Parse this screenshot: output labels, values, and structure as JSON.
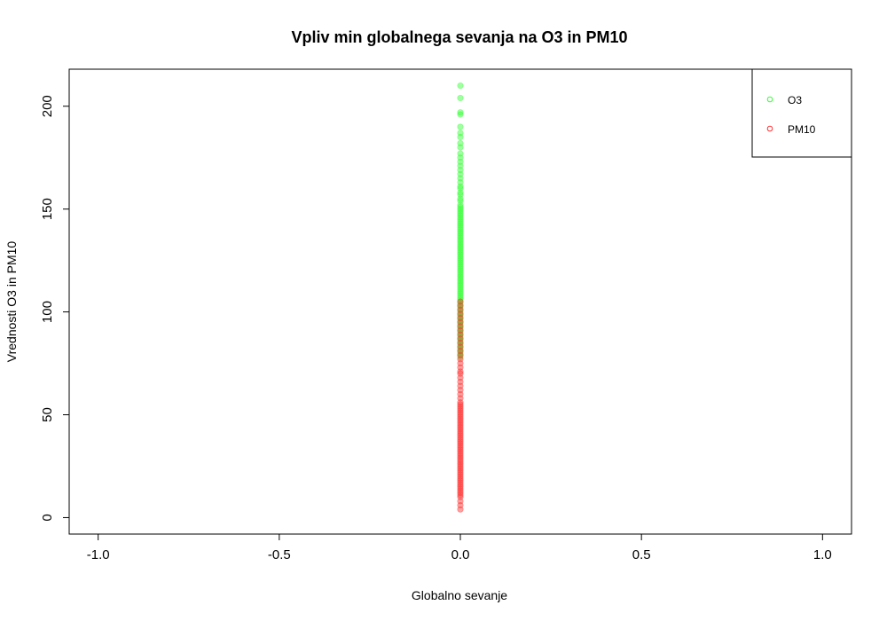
{
  "chart_data": {
    "type": "scatter",
    "title": "Vpliv min globalnega sevanja na O3 in PM10",
    "xlabel": "Globalno sevanje",
    "ylabel": "Vrednosti O3 in PM10",
    "xlim": [
      -1.08,
      1.08
    ],
    "ylim": [
      -8,
      218
    ],
    "x_ticks": [
      -1.0,
      -0.5,
      0.0,
      0.5,
      1.0
    ],
    "x_tick_labels": [
      "-1.0",
      "-0.5",
      "0.0",
      "0.5",
      "1.0"
    ],
    "y_ticks": [
      0,
      50,
      100,
      150,
      200
    ],
    "y_tick_labels": [
      "0",
      "50",
      "100",
      "150",
      "200"
    ],
    "grid": false,
    "legend_position": "top-right",
    "series": [
      {
        "name": "O3",
        "color": "#33ff33",
        "marker": "circle",
        "x": [
          0,
          0,
          0,
          0,
          0,
          0,
          0,
          0,
          0,
          0,
          0,
          0,
          0,
          0,
          0,
          0,
          0,
          0,
          0,
          0,
          0,
          0,
          0,
          0,
          0,
          0,
          0,
          0,
          0,
          0,
          0,
          0,
          0,
          0,
          0,
          0,
          0,
          0,
          0,
          0,
          0,
          0,
          0,
          0,
          0,
          0,
          0,
          0,
          0,
          0,
          0,
          0,
          0,
          0,
          0,
          0,
          0,
          0,
          0,
          0,
          0,
          0,
          0,
          0,
          0,
          0,
          0,
          0,
          0,
          0,
          0,
          0,
          0,
          0,
          0,
          0,
          0,
          0,
          0,
          0,
          0,
          0,
          0,
          0,
          0,
          0,
          0,
          0,
          0,
          0,
          0,
          0,
          0,
          0,
          0,
          0,
          0,
          0
        ],
        "y": [
          210,
          204,
          197,
          196,
          190,
          187,
          185,
          182,
          180,
          177,
          175,
          173,
          171,
          169,
          167,
          165,
          163,
          161,
          160,
          158,
          157,
          155,
          154,
          152,
          151,
          150,
          149,
          148,
          147,
          146,
          145,
          144,
          143,
          142,
          141,
          140,
          139,
          138,
          137,
          136,
          135,
          134,
          133,
          132,
          131,
          130,
          129,
          128,
          127,
          126,
          125,
          124,
          123,
          122,
          121,
          120,
          119,
          118,
          117,
          116,
          115,
          114,
          113,
          112,
          111,
          110,
          109,
          108,
          107,
          106,
          105,
          104,
          103,
          102,
          101,
          100,
          99,
          98,
          97,
          96,
          95,
          94,
          93,
          92,
          91,
          90,
          89,
          88,
          87,
          86,
          85,
          84,
          83,
          82,
          81,
          80,
          79,
          78
        ]
      },
      {
        "name": "PM10",
        "color": "#ff3333",
        "marker": "circle",
        "x": [
          0,
          0,
          0,
          0,
          0,
          0,
          0,
          0,
          0,
          0,
          0,
          0,
          0,
          0,
          0,
          0,
          0,
          0,
          0,
          0,
          0,
          0,
          0,
          0,
          0,
          0,
          0,
          0,
          0,
          0,
          0,
          0,
          0,
          0,
          0,
          0,
          0,
          0,
          0,
          0,
          0,
          0,
          0,
          0,
          0,
          0,
          0,
          0,
          0,
          0,
          0,
          0,
          0,
          0,
          0,
          0,
          0,
          0,
          0,
          0,
          0,
          0,
          0,
          0,
          0,
          0,
          0,
          0,
          0,
          0,
          0,
          0,
          0,
          0,
          0
        ],
        "y": [
          105,
          103,
          101,
          99,
          97,
          95,
          93,
          91,
          89,
          87,
          85,
          83,
          81,
          79,
          77,
          75,
          73,
          71,
          70,
          68,
          66,
          64,
          62,
          60,
          58,
          56,
          55,
          54,
          53,
          52,
          51,
          50,
          49,
          48,
          47,
          46,
          45,
          44,
          43,
          42,
          41,
          40,
          39,
          38,
          37,
          36,
          35,
          34,
          33,
          32,
          31,
          30,
          29,
          28,
          27,
          26,
          25,
          24,
          23,
          22,
          21,
          20,
          19,
          18,
          17,
          16,
          15,
          14,
          13,
          12,
          11,
          10,
          8,
          6,
          4
        ]
      }
    ]
  }
}
